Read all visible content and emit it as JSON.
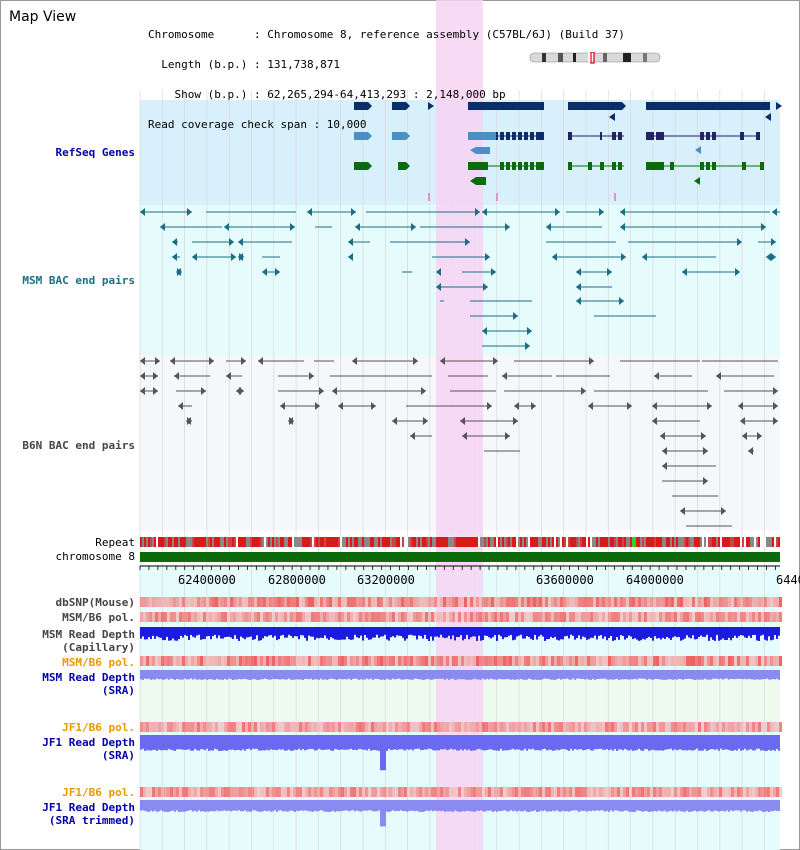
{
  "page": {
    "title": "Map View"
  },
  "header": {
    "lines": [
      "Chromosome      : Chromosome 8, reference assembly (C57BL/6J) (Build 37)",
      "  Length (b.p.) : 131,738,871",
      "    Show (b.p.) : 62,265,294-64,413,293 : 2,148,000 bp",
      "Read coverage check span : 10,000"
    ]
  },
  "tracks": {
    "refseq": "RefSeq Genes",
    "msm_bac": "MSM BAC end pairs",
    "b6n_bac": "B6N BAC end pairs",
    "repeat": "Repeat",
    "chrom": "chromosome 8",
    "dbsnp": "dbSNP(Mouse)",
    "msm_pol": "MSM/B6 pol.",
    "msm_depth_cap": "MSM Read Depth\n(Capillary)",
    "msm_pol_sra": "MSM/B6 pol.",
    "msm_depth_sra": "MSM Read Depth\n(SRA)",
    "jf1_pol": "JF1/B6 pol.",
    "jf1_depth": "JF1 Read Depth\n(SRA)",
    "jf1_pol2": "JF1/B6 pol.",
    "jf1_depth_trim": "JF1 Read Depth\n(SRA trimmed)"
  },
  "axis": {
    "ticks": [
      "62400000",
      "62800000",
      "63200000",
      "63600000",
      "64000000",
      "6440"
    ]
  },
  "colors": {
    "refseq_bg": "#d8f0fb",
    "msm_bg": "#e6fbfb",
    "gene_dark": "#0b2e6a",
    "gene_mid": "#4a90c4",
    "gene_green": "#0b6a0b",
    "msm_line": "#1a6e86",
    "b6n_line": "#555555",
    "highlight": "#f7d3f3",
    "label_blue": "#0000aa",
    "label_teal": "#1a6e86",
    "label_gray": "#444444",
    "label_orange": "#e89a00",
    "depth_blue": "#3333ee"
  }
}
